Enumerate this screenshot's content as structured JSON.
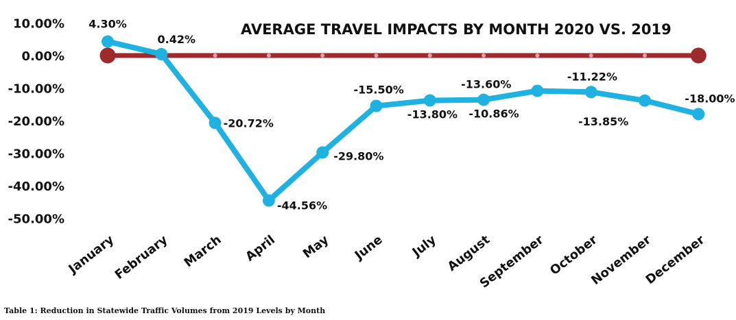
{
  "chart_data": {
    "type": "line",
    "title": "AVERAGE TRAVEL IMPACTS BY MONTH 2020 VS. 2019",
    "categories": [
      "January",
      "February",
      "March",
      "April",
      "May",
      "June",
      "July",
      "August",
      "September",
      "October",
      "November",
      "December"
    ],
    "series": [
      {
        "values": [
          4.3,
          0.42,
          -20.72,
          -44.56,
          -29.8,
          -15.5,
          -13.8,
          -13.6,
          -10.86,
          -11.22,
          -13.85,
          -18.0
        ],
        "color": "#1fb2e0"
      },
      {
        "values": [
          0,
          0,
          0,
          0,
          0,
          0,
          0,
          0,
          0,
          0,
          0,
          0
        ],
        "color": "#9e2a2b"
      }
    ],
    "data_labels": [
      "4.30%",
      "0.42%",
      "-20.72%",
      "-44.56%",
      "-29.80%",
      "-15.50%",
      "-13.80%",
      "-13.60%",
      "-10.86%",
      "-11.22%",
      "-13.85%",
      "-18.00%"
    ],
    "y_ticks": [
      10,
      0,
      -10,
      -20,
      -30,
      -40,
      -50
    ],
    "y_tick_labels": [
      "10.00%",
      "0.00%",
      "-10.00%",
      "-20.00%",
      "-30.00%",
      "-40.00%",
      "-50.00%"
    ],
    "ylim": [
      -50,
      10
    ],
    "xlabel": "",
    "ylabel": "",
    "grid": false,
    "legend": "none"
  },
  "caption": "Table 1: Reduction in Statewide Traffic Volumes from 2019 Levels by Month"
}
